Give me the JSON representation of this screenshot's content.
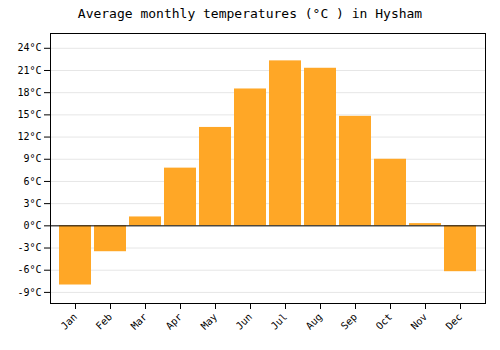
{
  "chart_data": {
    "type": "bar",
    "title": "Average monthly temperatures (°C ) in Hysham",
    "categories": [
      "Jan",
      "Feb",
      "Mar",
      "Apr",
      "May",
      "Jun",
      "Jul",
      "Aug",
      "Sep",
      "Oct",
      "Nov",
      "Dec"
    ],
    "values": [
      -8.0,
      -3.5,
      1.2,
      7.8,
      13.3,
      18.5,
      22.3,
      21.3,
      14.8,
      9.0,
      0.3,
      -6.2
    ],
    "color": "#FFA726",
    "ylim": [
      -10.5,
      26.0
    ],
    "yticks": [
      {
        "value": -9,
        "label": "-9°C"
      },
      {
        "value": -6,
        "label": "-6°C"
      },
      {
        "value": -3,
        "label": "-3°C"
      },
      {
        "value": 0,
        "label": "0°C"
      },
      {
        "value": 3,
        "label": "3°C"
      },
      {
        "value": 6,
        "label": "6°C"
      },
      {
        "value": 9,
        "label": "9°C"
      },
      {
        "value": 12,
        "label": "12°C"
      },
      {
        "value": 15,
        "label": "15°C"
      },
      {
        "value": 18,
        "label": "18°C"
      },
      {
        "value": 21,
        "label": "21°C"
      },
      {
        "value": 24,
        "label": "24°C"
      }
    ],
    "grid": true
  }
}
